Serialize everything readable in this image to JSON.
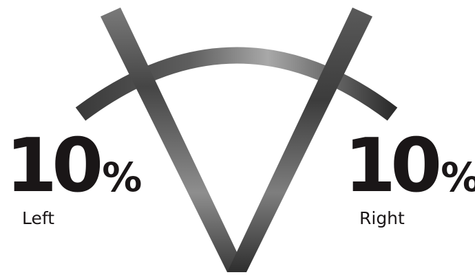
{
  "left": {
    "value": "10",
    "unit": "%",
    "label": "Left"
  },
  "right": {
    "value": "10",
    "unit": "%",
    "label": "Right"
  },
  "colors": {
    "text": "#1a1617",
    "stroke_dark": "#303030",
    "stroke_light": "#9a9a9a"
  }
}
